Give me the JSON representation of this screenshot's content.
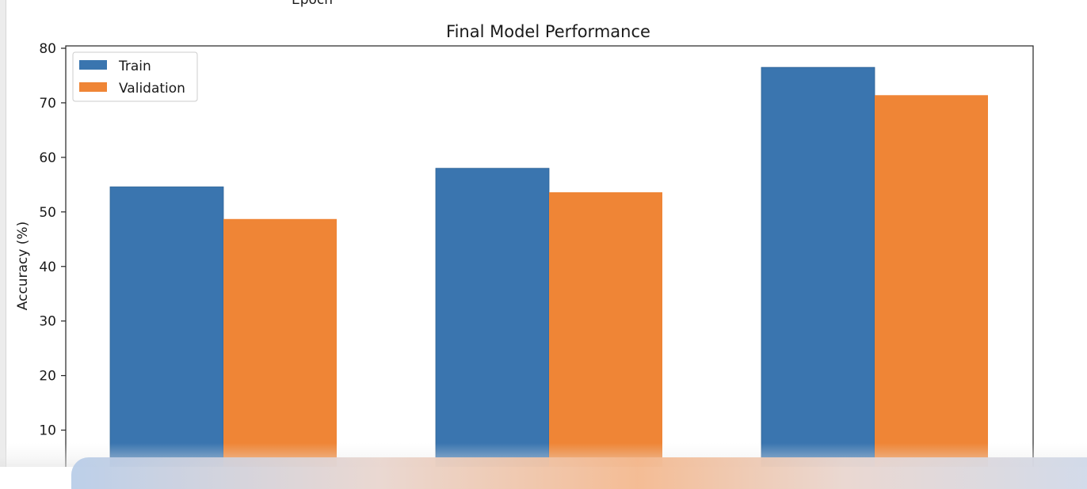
{
  "top_clipped_label": "Epoch",
  "chart_data": {
    "type": "bar",
    "title": "Final Model Performance",
    "ylabel": "Accuracy (%)",
    "xlabel": "",
    "categories": [
      "",
      "",
      ""
    ],
    "series": [
      {
        "name": "Train",
        "color": "#3a75af",
        "values": [
          54.6,
          58.0,
          76.5
        ]
      },
      {
        "name": "Validation",
        "color": "#ef8536",
        "values": [
          48.7,
          53.6,
          71.4
        ]
      }
    ],
    "ylim": [
      5,
      80
    ],
    "yticks": [
      "10",
      "20",
      "30",
      "40",
      "50",
      "60",
      "70",
      "80"
    ],
    "legend_position": "upper-left",
    "grid": false
  }
}
